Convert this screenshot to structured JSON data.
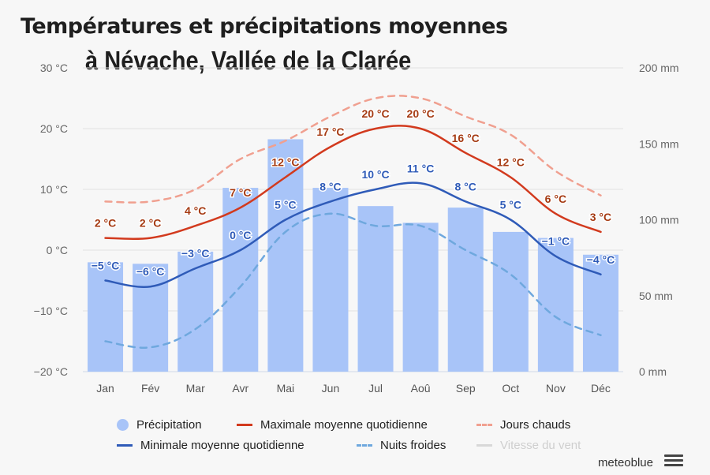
{
  "title_line1": "Températures et précipitations moyennes",
  "title_line2": "à Névache, Vallée de la Clarée",
  "brand": "meteoblue",
  "colors": {
    "precip": "#a8c4f8",
    "tmax": "#d23a1e",
    "hot": "#f0a090",
    "tmin": "#2f5bb8",
    "cold": "#6fa8de",
    "wind": "#cccccc"
  },
  "legend": {
    "precip": "Précipitation",
    "tmax": "Maximale moyenne quotidienne",
    "hot": "Jours chauds",
    "tmin": "Minimale moyenne quotidienne",
    "cold": "Nuits froides",
    "wind": "Vitesse du vent"
  },
  "chart_data": {
    "type": "bar",
    "categories": [
      "Jan",
      "Fév",
      "Mar",
      "Avr",
      "Mai",
      "Jun",
      "Jul",
      "Aoû",
      "Sep",
      "Oct",
      "Nov",
      "Déc"
    ],
    "left_axis": {
      "ylim": [
        -20,
        30
      ],
      "ticks": [
        "30 °C",
        "20 °C",
        "10 °C",
        "0 °C",
        "−10 °C",
        "−20 °C"
      ],
      "tick_values": [
        30,
        20,
        10,
        0,
        -10,
        -20
      ]
    },
    "right_axis": {
      "ylim": [
        0,
        200
      ],
      "ticks": [
        "200 mm",
        "150 mm",
        "100 mm",
        "50 mm",
        "0 mm"
      ],
      "tick_values": [
        200,
        150,
        100,
        50,
        0
      ]
    },
    "series": [
      {
        "name": "Précipitation",
        "type": "bar",
        "axis": "right",
        "values": [
          72,
          71,
          79,
          121,
          153,
          121,
          109,
          98,
          108,
          92,
          88,
          77
        ]
      },
      {
        "name": "Maximale moyenne quotidienne",
        "type": "line",
        "axis": "left",
        "values": [
          2,
          2,
          4,
          7,
          12,
          17,
          20,
          20,
          16,
          12,
          6,
          3
        ],
        "labels": [
          "2 °C",
          "2 °C",
          "4 °C",
          "7 °C",
          "12 °C",
          "17 °C",
          "20 °C",
          "20 °C",
          "16 °C",
          "12 °C",
          "6 °C",
          "3 °C"
        ]
      },
      {
        "name": "Minimale moyenne quotidienne",
        "type": "line",
        "axis": "left",
        "values": [
          -5,
          -6,
          -3,
          0,
          5,
          8,
          10,
          11,
          8,
          5,
          -1,
          -4
        ],
        "labels": [
          "−5 °C",
          "−6 °C",
          "−3 °C",
          "0 °C",
          "5 °C",
          "8 °C",
          "10 °C",
          "11 °C",
          "8 °C",
          "5 °C",
          "−1 °C",
          "−4 °C"
        ]
      },
      {
        "name": "Jours chauds",
        "type": "line",
        "dashed": true,
        "axis": "left",
        "values": [
          8,
          8,
          10,
          15,
          18,
          22,
          25,
          25,
          22,
          19,
          13,
          9
        ]
      },
      {
        "name": "Nuits froides",
        "type": "line",
        "dashed": true,
        "axis": "left",
        "values": [
          -15,
          -16,
          -13,
          -6,
          3,
          6,
          4,
          4,
          0,
          -4,
          -11,
          -14
        ]
      }
    ],
    "grid": true
  }
}
